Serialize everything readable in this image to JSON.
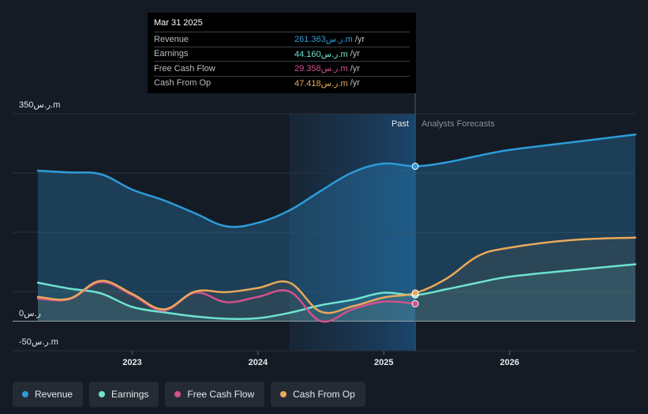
{
  "chart_data": {
    "type": "line",
    "title": "",
    "y_top_label": "350ر.س.m",
    "y_zero_label": "0ر.س",
    "y_bottom_label": "-50ر.س.m",
    "ylim": [
      -50,
      350
    ],
    "x_ticks": [
      {
        "label": "2023",
        "x": 2023.0
      },
      {
        "label": "2024",
        "x": 2024.0
      },
      {
        "label": "2025",
        "x": 2025.0
      },
      {
        "label": "2026",
        "x": 2026.0
      }
    ],
    "divider_x": 2025.25,
    "past_start_x": 2024.25,
    "past_label": "Past",
    "forecast_label": "Analysts Forecasts",
    "series": [
      {
        "name": "Revenue",
        "color": "#2d9cdb",
        "fill": true,
        "points": [
          [
            2022.25,
            254
          ],
          [
            2022.5,
            251
          ],
          [
            2022.75,
            248
          ],
          [
            2023.0,
            222
          ],
          [
            2023.25,
            204
          ],
          [
            2023.5,
            182
          ],
          [
            2023.75,
            160
          ],
          [
            2024.0,
            166
          ],
          [
            2024.25,
            187
          ],
          [
            2024.5,
            220
          ],
          [
            2024.75,
            251
          ],
          [
            2025.0,
            266
          ],
          [
            2025.25,
            261.4
          ],
          [
            2025.5,
            268
          ],
          [
            2025.75,
            279
          ],
          [
            2026.0,
            289
          ],
          [
            2026.5,
            302
          ],
          [
            2027.0,
            315
          ]
        ]
      },
      {
        "name": "Earnings",
        "color": "#6ee3cf",
        "fill": true,
        "points": [
          [
            2022.25,
            65
          ],
          [
            2022.5,
            55
          ],
          [
            2022.75,
            47
          ],
          [
            2023.0,
            24
          ],
          [
            2023.25,
            15
          ],
          [
            2023.5,
            8
          ],
          [
            2023.75,
            4
          ],
          [
            2024.0,
            5
          ],
          [
            2024.25,
            14
          ],
          [
            2024.5,
            27
          ],
          [
            2024.75,
            36
          ],
          [
            2025.0,
            48
          ],
          [
            2025.25,
            44.16
          ],
          [
            2025.5,
            54
          ],
          [
            2025.75,
            65
          ],
          [
            2026.0,
            75
          ],
          [
            2026.5,
            86
          ],
          [
            2027.0,
            96
          ]
        ]
      },
      {
        "name": "Free Cash Flow",
        "color": "#d2518b",
        "fill": false,
        "points": [
          [
            2022.25,
            38
          ],
          [
            2022.5,
            37
          ],
          [
            2022.75,
            66
          ],
          [
            2023.0,
            44
          ],
          [
            2023.25,
            18
          ],
          [
            2023.5,
            48
          ],
          [
            2023.75,
            32
          ],
          [
            2024.0,
            41
          ],
          [
            2024.25,
            50
          ],
          [
            2024.5,
            0
          ],
          [
            2024.75,
            20
          ],
          [
            2025.0,
            33
          ],
          [
            2025.25,
            29.36
          ]
        ]
      },
      {
        "name": "Cash From Op",
        "color": "#e9a95a",
        "fill": true,
        "points": [
          [
            2022.25,
            41
          ],
          [
            2022.5,
            38
          ],
          [
            2022.75,
            68
          ],
          [
            2023.0,
            46
          ],
          [
            2023.25,
            20
          ],
          [
            2023.5,
            50
          ],
          [
            2023.75,
            49
          ],
          [
            2024.0,
            56
          ],
          [
            2024.25,
            65
          ],
          [
            2024.5,
            16
          ],
          [
            2024.75,
            25
          ],
          [
            2025.0,
            40
          ],
          [
            2025.25,
            47.42
          ],
          [
            2025.5,
            72
          ],
          [
            2025.75,
            110
          ],
          [
            2026.0,
            124
          ],
          [
            2026.5,
            137
          ],
          [
            2027.0,
            141
          ]
        ]
      }
    ]
  },
  "tooltip": {
    "date": "Mar 31 2025",
    "rows": [
      {
        "label": "Revenue",
        "value": "261.363ر.س.m",
        "unit": "/yr",
        "color": "#2d9cdb"
      },
      {
        "label": "Earnings",
        "value": "44.160ر.س.m",
        "unit": "/yr",
        "color": "#6ee3cf"
      },
      {
        "label": "Free Cash Flow",
        "value": "29.358ر.س.m",
        "unit": "/yr",
        "color": "#d2518b"
      },
      {
        "label": "Cash From Op",
        "value": "47.418ر.س.m",
        "unit": "/yr",
        "color": "#e9a95a"
      }
    ]
  },
  "legend": [
    {
      "label": "Revenue",
      "color": "#2d9cdb"
    },
    {
      "label": "Earnings",
      "color": "#6ee3cf"
    },
    {
      "label": "Free Cash Flow",
      "color": "#d2518b"
    },
    {
      "label": "Cash From Op",
      "color": "#e9a95a"
    }
  ]
}
